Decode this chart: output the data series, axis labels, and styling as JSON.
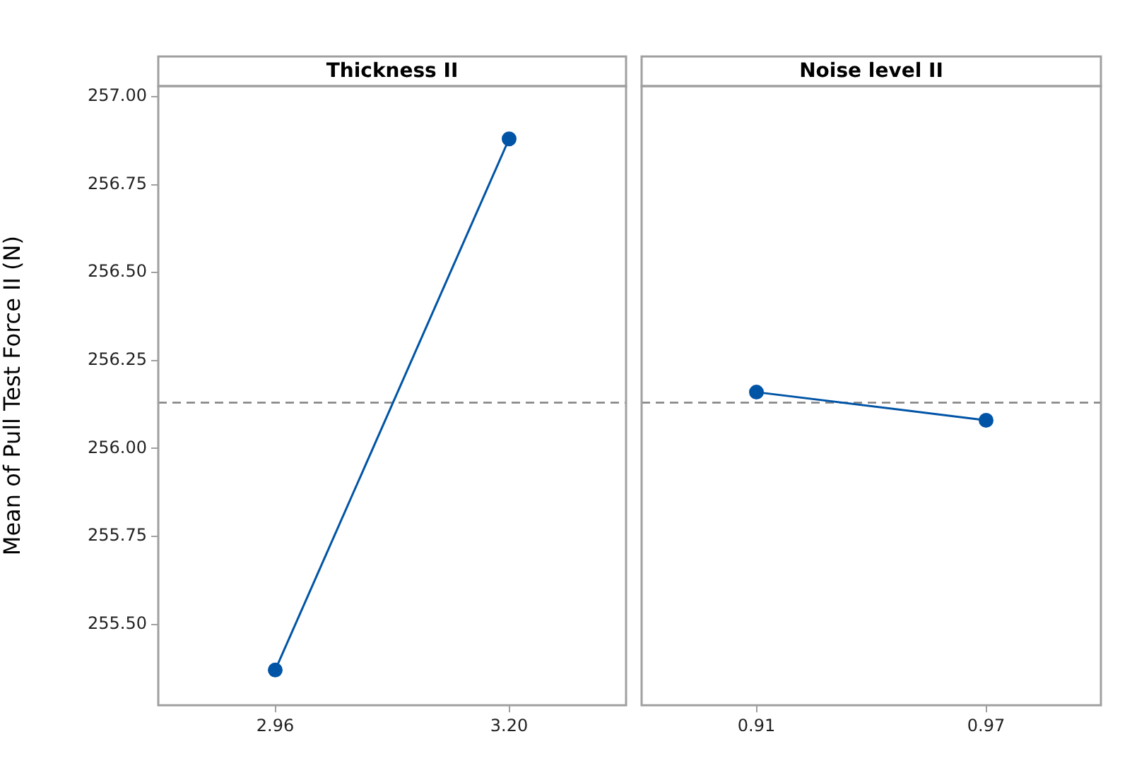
{
  "chart_data": [
    {
      "type": "line",
      "title": "Thickness II",
      "ylabel": "Mean of Pull Test Force II (N)",
      "categories": [
        "2.96",
        "3.20"
      ],
      "series": [
        {
          "color": "#0054a6",
          "values": [
            255.37,
            256.88
          ]
        }
      ],
      "ylim": [
        255.27,
        257.03
      ],
      "yticks": [
        {
          "value": 255.5,
          "label": "255.50"
        },
        {
          "value": 255.75,
          "label": "255.75"
        },
        {
          "value": 256,
          "label": "256.00"
        },
        {
          "value": 256.25,
          "label": "256.25"
        },
        {
          "value": 256.5,
          "label": "256.50"
        },
        {
          "value": 256.75,
          "label": "256.75"
        },
        {
          "value": 257,
          "label": "257.00"
        }
      ],
      "ref_lines": [
        {
          "axis": "y",
          "value": 256.13,
          "color": "#808080",
          "line_style": "dashed"
        }
      ],
      "marker": "circle",
      "legend": false,
      "grid": false
    },
    {
      "type": "line",
      "title": "Noise level II",
      "categories": [
        "0.91",
        "0.97"
      ],
      "series": [
        {
          "color": "#0054a6",
          "values": [
            256.16,
            256.08
          ]
        }
      ],
      "ylim": [
        255.27,
        257.03
      ],
      "ref_lines": [
        {
          "axis": "y",
          "value": 256.13,
          "color": "#808080",
          "line_style": "dashed"
        }
      ],
      "marker": "circle",
      "legend": false,
      "grid": false,
      "tick_labels": "x"
    }
  ]
}
